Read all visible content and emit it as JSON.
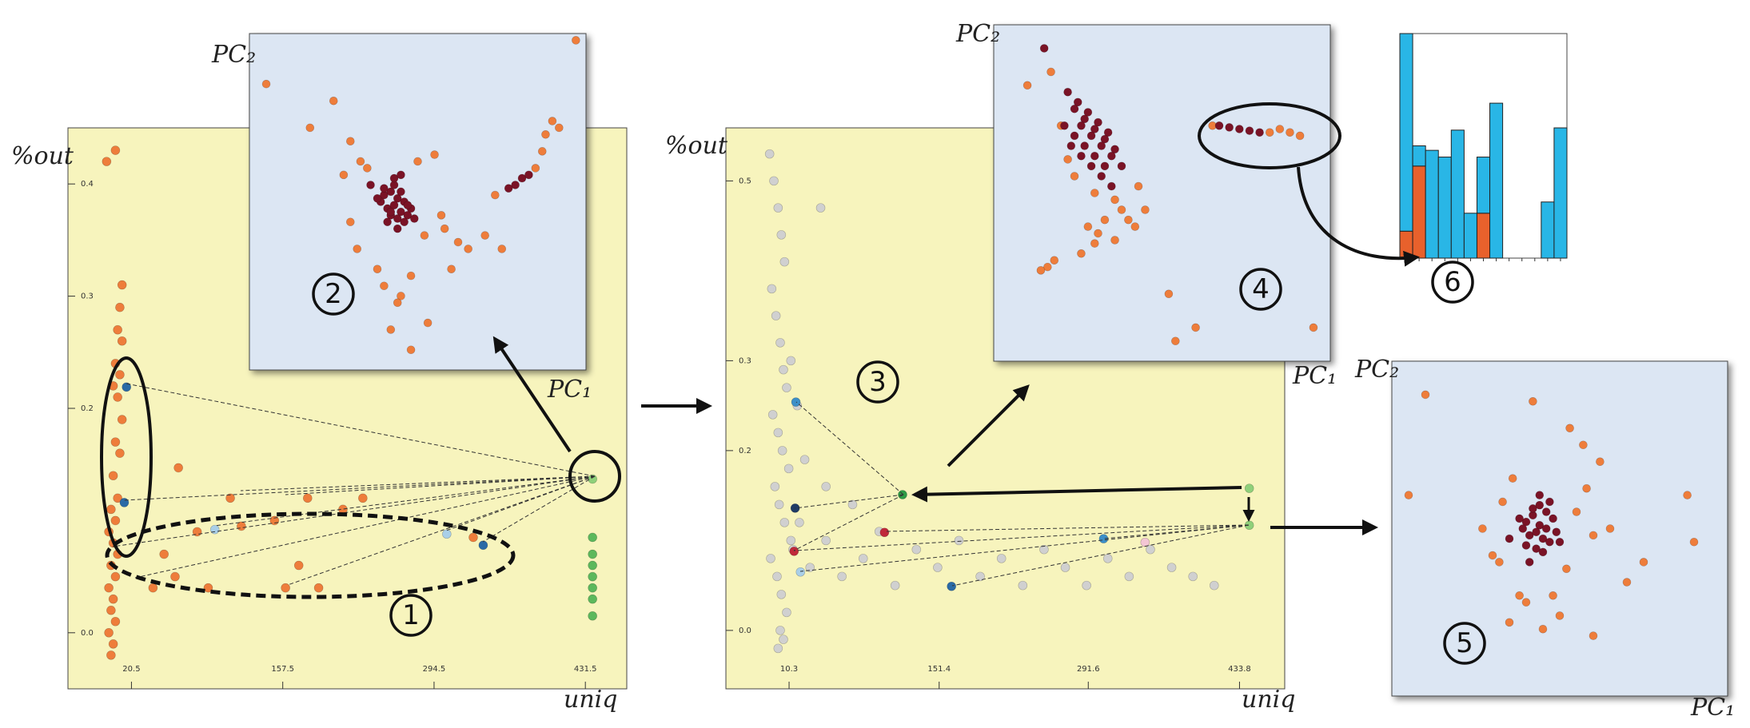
{
  "chart_data": [
    {
      "type": "scatter",
      "x_label": "uniq",
      "y_label": "%out",
      "annotation": "1",
      "xlim": [
        -37,
        469
      ],
      "ylim": [
        -0.05,
        0.45
      ],
      "xticks": [
        20.5,
        157.5,
        294.5,
        431.5
      ],
      "yticks": [
        {
          "value": 0,
          "label": "0.0"
        },
        0.2,
        0.3,
        0.4
      ],
      "series": [
        {
          "color": "#ee7d3b",
          "x": [
            -2,
            6,
            12,
            10,
            8,
            12,
            6,
            10,
            4,
            8,
            12,
            6,
            10,
            4,
            8,
            2,
            6,
            0,
            4,
            8,
            2,
            6,
            0,
            4,
            2,
            6,
            0,
            4,
            2,
            63,
            110,
            180,
            230,
            80,
            120,
            150,
            60,
            90,
            160,
            190,
            330,
            50,
            40,
            212,
            172
          ],
          "y": [
            0.42,
            0.43,
            0.31,
            0.29,
            0.27,
            0.26,
            0.24,
            0.23,
            0.22,
            0.21,
            0.19,
            0.17,
            0.16,
            0.14,
            0.12,
            0.11,
            0.1,
            0.09,
            0.08,
            0.07,
            0.06,
            0.05,
            0.04,
            0.03,
            0.02,
            0.01,
            0.0,
            -0.01,
            -0.02,
            0.147,
            0.12,
            0.12,
            0.12,
            0.09,
            0.095,
            0.1,
            0.05,
            0.04,
            0.04,
            0.04,
            0.085,
            0.07,
            0.04,
            0.11,
            0.06
          ]
        },
        {
          "color": "#2a6aa6",
          "x": [
            16,
            14,
            339
          ],
          "y": [
            0.219,
            0.116,
            0.078
          ]
        },
        {
          "color": "#a9cfe8",
          "x": [
            96,
            306
          ],
          "y": [
            0.092,
            0.088
          ]
        },
        {
          "color": "#5cb85c",
          "x": [
            438,
            438,
            438,
            438,
            438,
            438,
            438
          ],
          "y": [
            0.085,
            0.07,
            0.06,
            0.05,
            0.04,
            0.03,
            0.015
          ]
        },
        {
          "color": "#8fd07a",
          "x": [
            438
          ],
          "y": [
            0.137
          ]
        }
      ]
    },
    {
      "type": "scatter",
      "x_label": "uniq",
      "y_label": "%out",
      "annotation": "3",
      "xlim": [
        -49.1,
        476.3
      ],
      "ylim": [
        -0.065,
        0.559
      ],
      "xticks": [
        10.3,
        151.4,
        291.6,
        433.8
      ],
      "yticks": [
        {
          "value": 0,
          "label": "0.0"
        },
        0.2,
        0.3,
        0.5
      ],
      "series": [
        {
          "color": "#d0d0d0",
          "x": [
            -8,
            -4,
            0,
            3,
            6,
            -6,
            -2,
            2,
            5,
            8,
            -5,
            0,
            4,
            10,
            -3,
            1,
            6,
            12,
            -7,
            -1,
            3,
            8,
            2,
            5,
            0,
            14,
            20,
            30,
            45,
            60,
            80,
            95,
            110,
            130,
            150,
            170,
            190,
            210,
            230,
            250,
            270,
            290,
            310,
            330,
            350,
            370,
            390,
            410,
            45,
            70,
            25,
            18,
            12,
            40
          ],
          "y": [
            0.53,
            0.5,
            0.47,
            0.44,
            0.41,
            0.38,
            0.35,
            0.32,
            0.29,
            0.27,
            0.24,
            0.22,
            0.2,
            0.18,
            0.16,
            0.14,
            0.12,
            0.1,
            0.08,
            0.06,
            0.04,
            0.02,
            0.0,
            -0.01,
            -0.02,
            0.09,
            0.12,
            0.07,
            0.1,
            0.06,
            0.08,
            0.11,
            0.05,
            0.09,
            0.07,
            0.1,
            0.06,
            0.08,
            0.05,
            0.09,
            0.07,
            0.05,
            0.08,
            0.06,
            0.09,
            0.07,
            0.06,
            0.05,
            0.16,
            0.14,
            0.19,
            0.25,
            0.3,
            0.47
          ]
        },
        {
          "color": "#3c8fc8",
          "x": [
            16.7,
            306
          ],
          "y": [
            0.254,
            0.102
          ]
        },
        {
          "color": "#2a6aa6",
          "x": [
            163
          ],
          "y": [
            0.049
          ]
        },
        {
          "color": "#2e9b45",
          "x": [
            117
          ],
          "y": [
            0.151
          ]
        },
        {
          "color": "#8fd07a",
          "x": [
            443,
            443
          ],
          "y": [
            0.158,
            0.117
          ]
        },
        {
          "color": "#1f3b66",
          "x": [
            16
          ],
          "y": [
            0.136
          ]
        },
        {
          "color": "#c0283a",
          "x": [
            15,
            100
          ],
          "y": [
            0.088,
            0.109
          ]
        },
        {
          "color": "#a9cfe8",
          "x": [
            21
          ],
          "y": [
            0.065
          ]
        },
        {
          "color": "#f3c6d4",
          "x": [
            345
          ],
          "y": [
            0.098
          ]
        }
      ]
    },
    {
      "type": "scatter",
      "x_label": "PC₁",
      "y_label": "PC₂",
      "annotation": "2",
      "xlim": [
        0,
        100
      ],
      "ylim": [
        0,
        100
      ],
      "series": [
        {
          "color": "#ee7d3b",
          "x": [
            5,
            25,
            18,
            30,
            33,
            35,
            28,
            50,
            55,
            52,
            58,
            62,
            65,
            60,
            48,
            45,
            38,
            32,
            40,
            53,
            57,
            70,
            75,
            73,
            85,
            87,
            88,
            90,
            92,
            97,
            42,
            48,
            30,
            44
          ],
          "y": [
            85,
            80,
            72,
            68,
            62,
            60,
            58,
            62,
            64,
            40,
            42,
            38,
            36,
            30,
            28,
            22,
            30,
            36,
            25,
            14,
            46,
            40,
            36,
            52,
            60,
            65,
            70,
            74,
            72,
            98,
            12,
            6,
            44,
            20
          ]
        },
        {
          "color": "#7a1326",
          "x": [
            40,
            42,
            44,
            46,
            41,
            43,
            45,
            47,
            39,
            42,
            44,
            46,
            48,
            40,
            43,
            45,
            41,
            44,
            38,
            47,
            36,
            49,
            43,
            45,
            42,
            79,
            81,
            77,
            83
          ],
          "y": [
            52,
            53,
            51,
            50,
            48,
            49,
            47,
            46,
            50,
            46,
            45,
            44,
            48,
            54,
            55,
            53,
            44,
            42,
            51,
            49,
            55,
            45,
            57,
            58,
            47,
            55,
            57,
            54,
            58
          ]
        }
      ]
    },
    {
      "type": "scatter",
      "x_label": "PC₁",
      "y_label": "PC₂",
      "annotation": "4",
      "xlim": [
        0,
        100
      ],
      "ylim": [
        0,
        100
      ],
      "series": [
        {
          "color": "#ee7d3b",
          "x": [
            10,
            20,
            17,
            22,
            24,
            30,
            36,
            38,
            40,
            42,
            45,
            43,
            28,
            26,
            18,
            16,
            14,
            36,
            52,
            54,
            60,
            65,
            85,
            88,
            91,
            82,
            95,
            33,
            31,
            30
          ],
          "y": [
            82,
            70,
            86,
            60,
            55,
            50,
            48,
            45,
            42,
            40,
            45,
            52,
            40,
            32,
            30,
            28,
            27,
            36,
            20,
            6,
            10,
            70,
            69,
            68,
            67,
            68,
            10,
            42,
            38,
            35
          ]
        },
        {
          "color": "#7a1326",
          "x": [
            22,
            25,
            28,
            31,
            34,
            24,
            27,
            30,
            33,
            36,
            26,
            29,
            32,
            35,
            38,
            21,
            24,
            27,
            30,
            33,
            23,
            26,
            29,
            32,
            35,
            67,
            70,
            73,
            76,
            79,
            15
          ],
          "y": [
            80,
            77,
            74,
            71,
            68,
            75,
            72,
            69,
            66,
            63,
            70,
            67,
            64,
            61,
            58,
            70,
            67,
            64,
            61,
            58,
            64,
            61,
            58,
            55,
            52,
            70,
            69.5,
            69,
            68.5,
            68,
            93
          ]
        }
      ]
    },
    {
      "type": "scatter",
      "x_label": "PC₁",
      "y_label": "PC₂",
      "annotation": "5",
      "xlim": [
        0,
        100
      ],
      "ylim": [
        0,
        100
      ],
      "series": [
        {
          "color": "#ee7d3b",
          "x": [
            10,
            5,
            30,
            33,
            36,
            55,
            58,
            60,
            52,
            48,
            38,
            32,
            62,
            65,
            88,
            90,
            75,
            70,
            50,
            35,
            40,
            45,
            27,
            57,
            53,
            42,
            60
          ],
          "y": [
            90,
            60,
            42,
            58,
            65,
            55,
            62,
            48,
            38,
            30,
            30,
            40,
            70,
            50,
            60,
            46,
            40,
            34,
            24,
            22,
            28,
            20,
            50,
            75,
            80,
            88,
            18
          ]
        },
        {
          "color": "#7a1326",
          "x": [
            40,
            42,
            44,
            46,
            48,
            41,
            43,
            45,
            47,
            39,
            42,
            44,
            46,
            49,
            40,
            43,
            45,
            38,
            47,
            44,
            35,
            50,
            41
          ],
          "y": [
            52,
            54,
            51,
            50,
            53,
            48,
            49,
            47,
            46,
            50,
            56,
            57,
            55,
            49,
            45,
            44,
            43,
            53,
            58,
            60,
            47,
            46,
            40
          ]
        }
      ]
    },
    {
      "type": "bar",
      "annotation": "6",
      "ylim": [
        0,
        100
      ],
      "categories": [
        null,
        null,
        null,
        null,
        null,
        null,
        null,
        null,
        null,
        null,
        null,
        null,
        null
      ],
      "series": [
        {
          "color": "#e8612c",
          "values": [
            12,
            41,
            0,
            0,
            0,
            0,
            20,
            0,
            0,
            0,
            0,
            0,
            0
          ]
        },
        {
          "color": "#29b6e6",
          "values": [
            88,
            9,
            48,
            45,
            57,
            20,
            25,
            69,
            0,
            0,
            0,
            25,
            58
          ]
        }
      ]
    }
  ]
}
